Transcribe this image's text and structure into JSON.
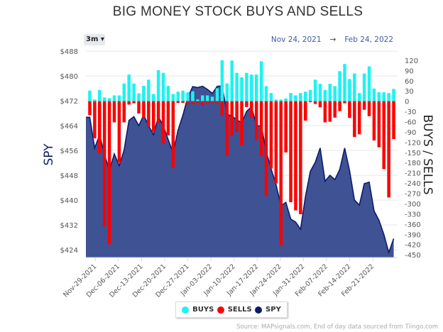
{
  "header": {
    "title": "BIG MONEY STOCK BUYS AND SELLS",
    "range_button": "3m",
    "range_icon": "caret-down-icon",
    "date_from": "Nov 24, 2021",
    "date_arrow": "→",
    "date_to": "Feb 24, 2022"
  },
  "footer": {
    "source": "Source: MAPsignals.com, End of day data sourced from Tiingo.com"
  },
  "chart_data": {
    "type": "bar+area",
    "title": "BIG MONEY STOCK BUYS AND SELLS",
    "ylabel_left": "SPY",
    "ylabel_right": "BUYS / SELLS",
    "ylim_left": [
      421.5,
      488.5
    ],
    "ylim_right": [
      -458,
      151
    ],
    "left_ticks": [
      "$488",
      "$480",
      "$472",
      "$464",
      "$456",
      "$448",
      "$440",
      "$432",
      "$424"
    ],
    "left_tick_values": [
      488,
      480,
      472,
      464,
      456,
      448,
      440,
      432,
      424
    ],
    "right_ticks": [
      "120",
      "90",
      "60",
      "30",
      "0",
      "-30",
      "-60",
      "-90",
      "-120",
      "-150",
      "-180",
      "-210",
      "-240",
      "-270",
      "-300",
      "-330",
      "-360",
      "-390",
      "-420",
      "-450"
    ],
    "right_tick_values": [
      120,
      90,
      60,
      30,
      0,
      -30,
      -60,
      -90,
      -120,
      -150,
      -180,
      -210,
      -240,
      -270,
      -300,
      -330,
      -360,
      -390,
      -420,
      -450
    ],
    "x_tick_labels": [
      "Nov-29-2021",
      "Dec-06-2021",
      "Dec-13-2021",
      "Dec-20-2021",
      "Dec-27-2021",
      "Jan-03-2022",
      "Jan-10-2022",
      "Jan-17-2022",
      "Jan-24-2022",
      "Jan-31-2022",
      "Feb-07-2022",
      "Feb-14-2022",
      "Feb-21-2022"
    ],
    "grid": true,
    "legend_position": "bottom-center",
    "colors": {
      "buys": "#1ef2f2",
      "sells": "#ff0000",
      "spy_fill": "#3f5294",
      "spy_line": "#0d1b6e"
    },
    "series": [
      {
        "name": "BUYS",
        "type": "bar",
        "values": [
          31,
          5,
          33,
          11,
          9,
          17,
          17,
          52,
          78,
          52,
          23,
          45,
          63,
          21,
          91,
          83,
          45,
          21,
          28,
          31,
          26,
          29,
          5,
          17,
          17,
          13,
          38,
          120,
          52,
          119,
          83,
          70,
          83,
          78,
          78,
          117,
          44,
          24,
          5,
          5,
          8,
          24,
          17,
          24,
          28,
          33,
          63,
          51,
          33,
          51,
          44,
          88,
          109,
          65,
          81,
          24,
          81,
          102,
          37,
          26,
          26,
          24,
          36
        ]
      },
      {
        "name": "SELLS",
        "type": "bar",
        "values": [
          -41,
          -109,
          -153,
          -367,
          -419,
          -62,
          -180,
          -62,
          -10,
          -6,
          -36,
          -49,
          -74,
          -90,
          -64,
          -124,
          -100,
          -195,
          -5,
          -5,
          -8,
          -9,
          -6,
          -13,
          -6,
          -6,
          -6,
          -42,
          -159,
          -100,
          -90,
          -129,
          -17,
          -49,
          -114,
          -161,
          -278,
          -197,
          -241,
          -424,
          -150,
          -296,
          -320,
          -331,
          -57,
          -3,
          -8,
          -18,
          -62,
          -60,
          -48,
          -29,
          -6,
          -49,
          -105,
          -97,
          -25,
          -44,
          -115,
          -135,
          -199,
          -282,
          -111
        ]
      },
      {
        "name": "SPY",
        "type": "area",
        "values": [
          466.7,
          456.8,
          461.0,
          454.8,
          449.5,
          454.9,
          451.1,
          456.1,
          465.7,
          466.9,
          464.0,
          467.4,
          464.0,
          461.1,
          466.9,
          463.9,
          459.5,
          455.2,
          462.5,
          467.4,
          473.2,
          476.6,
          476.3,
          476.7,
          475.7,
          474.4,
          476.7,
          476.8,
          467.7,
          467.1,
          465.9,
          465.0,
          468.6,
          470.1,
          464.0,
          463.9,
          455.6,
          450.0,
          445.0,
          438.1,
          439.3,
          433.9,
          432.9,
          430.6,
          441.2,
          449.3,
          452.2,
          456.8,
          446.1,
          448.0,
          446.6,
          449.9,
          456.8,
          449.5,
          440.0,
          438.4,
          445.3,
          445.8,
          436.5,
          433.5,
          428.9,
          423.1,
          427.6
        ]
      }
    ]
  },
  "legend": {
    "items": [
      {
        "label": "BUYS",
        "color": "#1ef2f2"
      },
      {
        "label": "SELLS",
        "color": "#ff0000"
      },
      {
        "label": "SPY",
        "color": "#0d1b6e"
      }
    ]
  }
}
